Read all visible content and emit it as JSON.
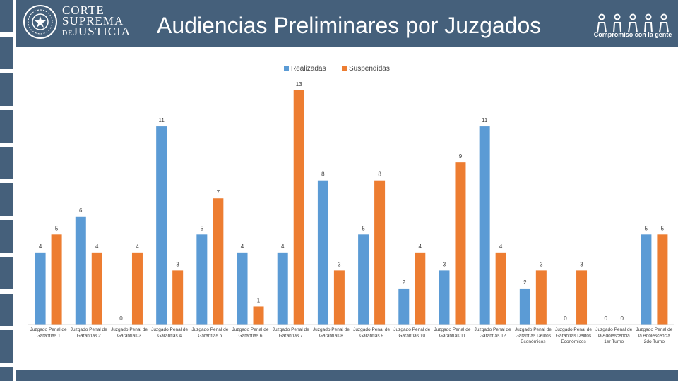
{
  "header": {
    "org_line1": "CORTE",
    "org_line2": "SUPREMA",
    "org_line3_prefix": "DE",
    "org_line3": "JUSTICIA",
    "title": "Audiencias Preliminares por Juzgados",
    "slogan": "Compromiso con la gente",
    "seal_icon": "court-seal-icon",
    "logo_icon": "people-logo-icon"
  },
  "colors": {
    "header_bg": "#45607b",
    "realizadas": "#5b9bd5",
    "suspendidas": "#ed7d31"
  },
  "chart_data": {
    "type": "bar",
    "title": "",
    "xlabel": "",
    "ylabel": "",
    "ylim": [
      0,
      13
    ],
    "grid": false,
    "legend_position": "top",
    "categories": [
      [
        "Juzgado Penal de",
        "Garantías 1"
      ],
      [
        "Juzgado Penal de",
        "Garantías 2"
      ],
      [
        "Juzgado Penal de",
        "Garantías 3"
      ],
      [
        "Juzgado Penal de",
        "Garantías 4"
      ],
      [
        "Juzgado Penal de",
        "Garantías 5"
      ],
      [
        "Juzgado Penal de",
        "Garantías 6"
      ],
      [
        "Juzgado Penal de",
        "Garantías 7"
      ],
      [
        "Juzgado Penal de",
        "Garantías 8"
      ],
      [
        "Juzgado Penal de",
        "Garantías 9"
      ],
      [
        "Juzgado Penal de",
        "Garantías 10"
      ],
      [
        "Juzgado Penal de",
        "Garantías 11"
      ],
      [
        "Juzgado Penal de",
        "Garantías 12"
      ],
      [
        "Juzgado Penal de",
        "Garantías Delitos",
        "Económicos"
      ],
      [
        "Juzgado Penal de",
        "Garantías Delitos",
        "Económicos"
      ],
      [
        "Juzgado Penal de",
        "la Adolescencia",
        "1er Turno"
      ],
      [
        "Juzgado Penal de",
        "la Adolescencia",
        "2do Turno"
      ]
    ],
    "series": [
      {
        "name": "Realizadas",
        "values": [
          4,
          6,
          0,
          11,
          5,
          4,
          4,
          8,
          5,
          2,
          3,
          11,
          2,
          0,
          0,
          5
        ]
      },
      {
        "name": "Suspendidas",
        "values": [
          5,
          4,
          4,
          3,
          7,
          1,
          13,
          3,
          8,
          4,
          9,
          4,
          3,
          3,
          0,
          5
        ]
      }
    ]
  }
}
